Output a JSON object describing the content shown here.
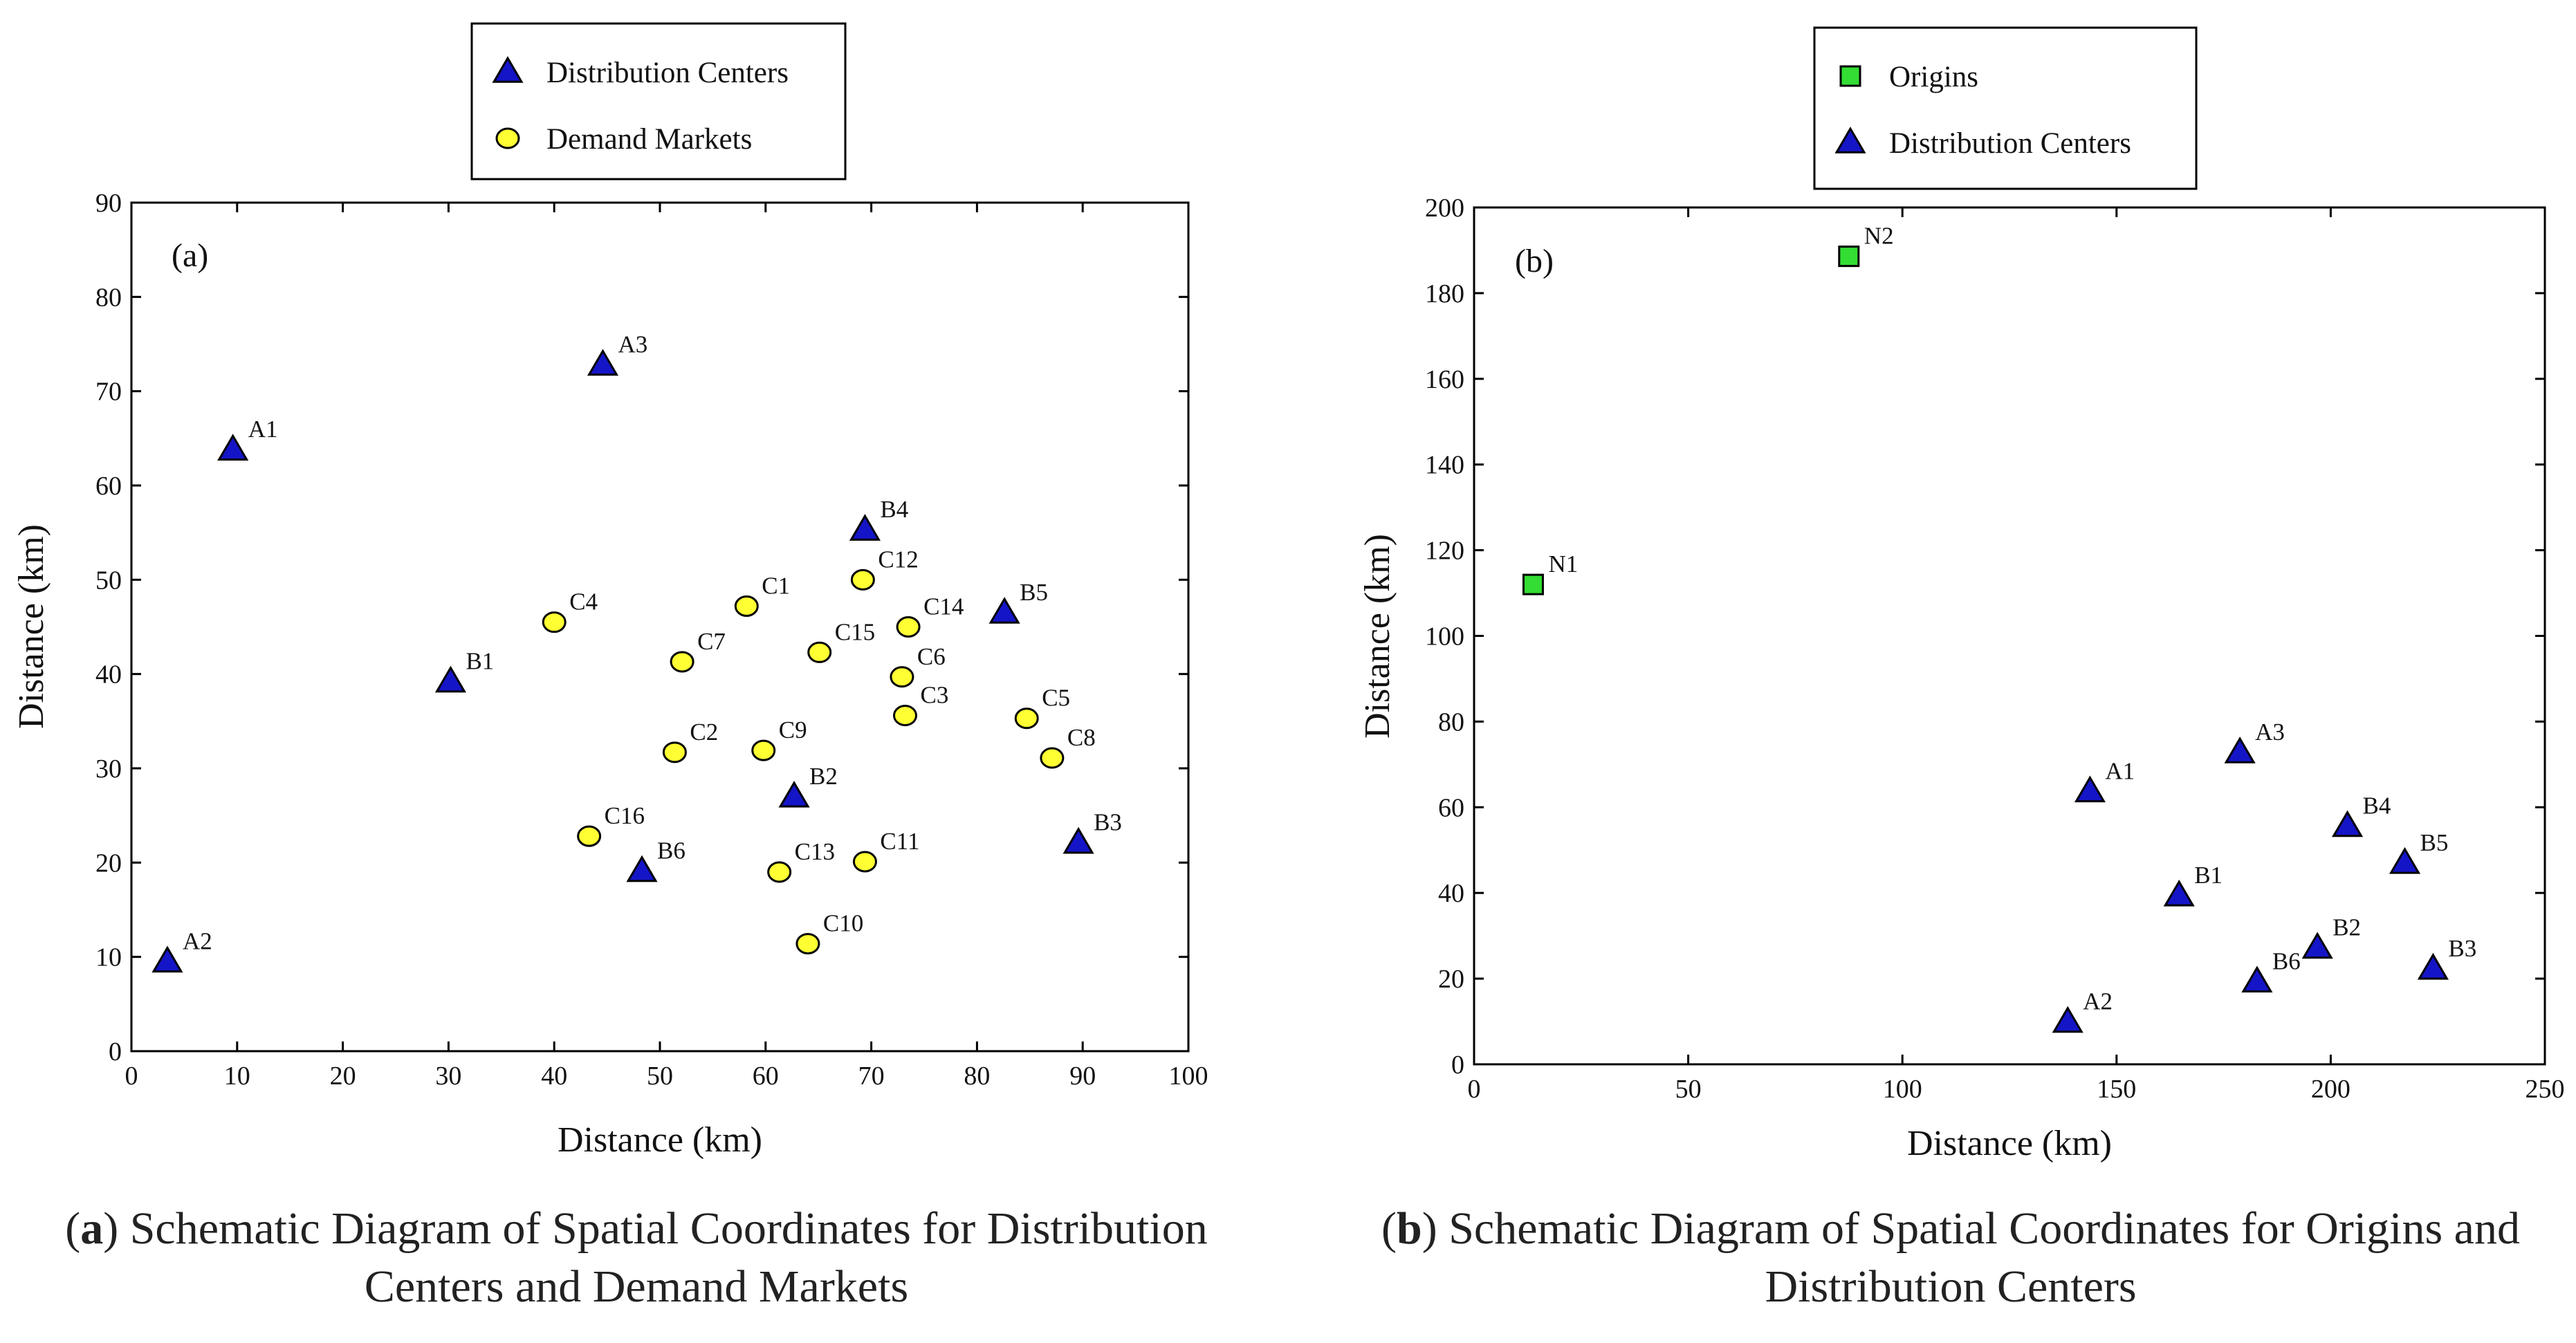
{
  "chart_data": [
    {
      "type": "scatter",
      "panel_label": "(a)",
      "xlabel": "Distance (km)",
      "ylabel": "Distance (km)",
      "xlim": [
        0,
        100
      ],
      "ylim": [
        0,
        90
      ],
      "xticks": [
        0,
        10,
        20,
        30,
        40,
        50,
        60,
        70,
        80,
        90,
        100
      ],
      "yticks": [
        0,
        10,
        20,
        30,
        40,
        50,
        60,
        70,
        80,
        90
      ],
      "grid": false,
      "legend_position": "top-center",
      "series": [
        {
          "name": "Distribution Centers",
          "marker": "triangle",
          "color": "#1515c8",
          "points": [
            {
              "label": "A1",
              "x": 9.6,
              "y": 63.8
            },
            {
              "label": "A2",
              "x": 3.4,
              "y": 9.5
            },
            {
              "label": "A3",
              "x": 44.6,
              "y": 72.8
            },
            {
              "label": "B1",
              "x": 30.2,
              "y": 39.2
            },
            {
              "label": "B2",
              "x": 62.7,
              "y": 27.0
            },
            {
              "label": "B3",
              "x": 89.6,
              "y": 22.1
            },
            {
              "label": "B4",
              "x": 69.4,
              "y": 55.3
            },
            {
              "label": "B5",
              "x": 82.6,
              "y": 46.5
            },
            {
              "label": "B6",
              "x": 48.3,
              "y": 19.1
            }
          ]
        },
        {
          "name": "Demand Markets",
          "marker": "circle",
          "color": "#ffff33",
          "points": [
            {
              "label": "C1",
              "x": 58.2,
              "y": 47.2
            },
            {
              "label": "C2",
              "x": 51.4,
              "y": 31.7
            },
            {
              "label": "C3",
              "x": 73.2,
              "y": 35.6
            },
            {
              "label": "C4",
              "x": 40.0,
              "y": 45.5
            },
            {
              "label": "C5",
              "x": 84.7,
              "y": 35.3
            },
            {
              "label": "C6",
              "x": 72.9,
              "y": 39.7
            },
            {
              "label": "C7",
              "x": 52.1,
              "y": 41.3
            },
            {
              "label": "C8",
              "x": 87.1,
              "y": 31.1
            },
            {
              "label": "C9",
              "x": 59.8,
              "y": 31.9
            },
            {
              "label": "C10",
              "x": 64.0,
              "y": 11.4
            },
            {
              "label": "C11",
              "x": 69.4,
              "y": 20.1
            },
            {
              "label": "C12",
              "x": 69.2,
              "y": 50.0
            },
            {
              "label": "C13",
              "x": 61.3,
              "y": 19.0
            },
            {
              "label": "C14",
              "x": 73.5,
              "y": 45.0
            },
            {
              "label": "C15",
              "x": 65.1,
              "y": 42.3
            },
            {
              "label": "C16",
              "x": 43.3,
              "y": 22.8
            }
          ]
        }
      ]
    },
    {
      "type": "scatter",
      "panel_label": "(b)",
      "xlabel": "Distance (km)",
      "ylabel": "Distance (km)",
      "xlim": [
        0,
        250
      ],
      "ylim": [
        0,
        200
      ],
      "xticks": [
        0,
        50,
        100,
        150,
        200,
        250
      ],
      "yticks": [
        0,
        20,
        40,
        60,
        80,
        100,
        120,
        140,
        160,
        180,
        200
      ],
      "grid": false,
      "legend_position": "top-center",
      "series": [
        {
          "name": "Origins",
          "marker": "square",
          "color": "#33dd33",
          "points": [
            {
              "label": "N1",
              "x": 13.8,
              "y": 112.0
            },
            {
              "label": "N2",
              "x": 87.5,
              "y": 188.6
            }
          ]
        },
        {
          "name": "Distribution Centers",
          "marker": "triangle",
          "color": "#1515c8",
          "points": [
            {
              "label": "A1",
              "x": 143.8,
              "y": 63.7
            },
            {
              "label": "A2",
              "x": 138.6,
              "y": 9.9
            },
            {
              "label": "A3",
              "x": 178.8,
              "y": 72.8
            },
            {
              "label": "B1",
              "x": 164.6,
              "y": 39.4
            },
            {
              "label": "B2",
              "x": 196.9,
              "y": 27.2
            },
            {
              "label": "B3",
              "x": 223.9,
              "y": 22.3
            },
            {
              "label": "B4",
              "x": 203.9,
              "y": 55.6
            },
            {
              "label": "B5",
              "x": 217.3,
              "y": 47.0
            },
            {
              "label": "B6",
              "x": 182.8,
              "y": 19.3
            }
          ]
        }
      ]
    }
  ],
  "captions": {
    "a": {
      "letter": "a",
      "text": ") Schematic Diagram of Spatial Coordinates for Distribution Centers and Demand Markets"
    },
    "b": {
      "letter": "b",
      "text": ") Schematic Diagram of Spatial Coordinates for Origins and Distribution Centers"
    }
  }
}
